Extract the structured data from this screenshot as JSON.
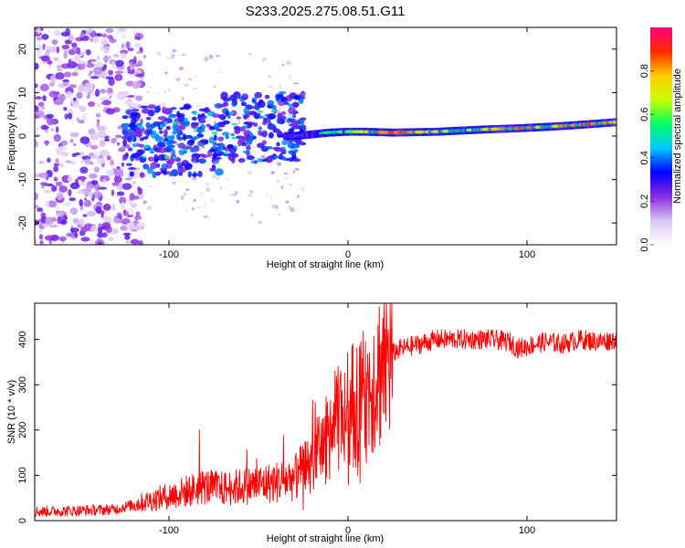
{
  "chart_data": [
    {
      "type": "heatmap",
      "title": "S233.2025.275.08.51.G11",
      "xlabel": "Height of straight line (km)",
      "ylabel": "Frequency (Hz)",
      "xlim": [
        -175,
        150
      ],
      "ylim": [
        -25,
        25
      ],
      "xticks": [
        -100,
        0,
        100
      ],
      "xtick_labels": [
        "-100",
        "0",
        "100"
      ],
      "yticks": [
        -20,
        -10,
        0,
        10,
        20
      ],
      "ytick_labels": [
        "-20",
        "-10",
        "0",
        "10",
        "20"
      ],
      "colorbar": {
        "label": "Normalized spectral amplitude",
        "range": [
          0,
          1
        ],
        "ticks": [
          0.0,
          0.2,
          0.4,
          0.6,
          0.8
        ],
        "tick_labels": [
          "0.0",
          "0.2",
          "0.4",
          "0.6",
          "0.8"
        ],
        "colors": [
          "#ffffff",
          "#d9c6f2",
          "#8a2be2",
          "#0000ff",
          "#00c8ff",
          "#00ff66",
          "#c8ff00",
          "#ffcc00",
          "#ff2a00",
          "#ff0080"
        ]
      },
      "band": [
        {
          "x": -30,
          "f": 0.0,
          "a": 0.3
        },
        {
          "x": -20,
          "f": 0.4,
          "a": 0.4
        },
        {
          "x": -10,
          "f": 0.8,
          "a": 0.55
        },
        {
          "x": 0,
          "f": 1.0,
          "a": 0.6
        },
        {
          "x": 10,
          "f": 1.0,
          "a": 0.7
        },
        {
          "x": 25,
          "f": 0.8,
          "a": 0.9
        },
        {
          "x": 50,
          "f": 1.0,
          "a": 0.7
        },
        {
          "x": 75,
          "f": 1.5,
          "a": 0.75
        },
        {
          "x": 95,
          "f": 1.8,
          "a": 0.85
        },
        {
          "x": 115,
          "f": 2.2,
          "a": 0.75
        },
        {
          "x": 130,
          "f": 2.6,
          "a": 0.9
        },
        {
          "x": 150,
          "f": 3.2,
          "a": 0.85
        }
      ]
    },
    {
      "type": "line",
      "xlabel": "Height of straight line (km)",
      "ylabel": "SNR (10 * v/v)",
      "xlim": [
        -175,
        150
      ],
      "ylim": [
        0,
        480
      ],
      "xticks": [
        -100,
        0,
        100
      ],
      "xtick_labels": [
        "-100",
        "0",
        "100"
      ],
      "yticks": [
        0,
        100,
        200,
        300,
        400
      ],
      "ytick_labels": [
        "0",
        "100",
        "200",
        "300",
        "400"
      ],
      "color": "#ff0000",
      "series": [
        {
          "name": "SNR",
          "x": [
            -175,
            -150,
            -130,
            -120,
            -110,
            -100,
            -90,
            -80,
            -70,
            -60,
            -50,
            -40,
            -30,
            -22,
            -17,
            -12,
            -8,
            -4,
            0,
            5,
            10,
            15,
            20,
            25,
            30,
            40,
            50,
            60,
            70,
            80,
            90,
            95,
            100,
            110,
            120,
            130,
            140,
            150
          ],
          "values": [
            20,
            22,
            25,
            35,
            45,
            55,
            65,
            75,
            70,
            75,
            80,
            85,
            95,
            120,
            150,
            180,
            210,
            230,
            250,
            260,
            280,
            320,
            350,
            370,
            380,
            390,
            400,
            400,
            400,
            400,
            395,
            380,
            385,
            395,
            390,
            400,
            395,
            400
          ]
        }
      ]
    }
  ]
}
